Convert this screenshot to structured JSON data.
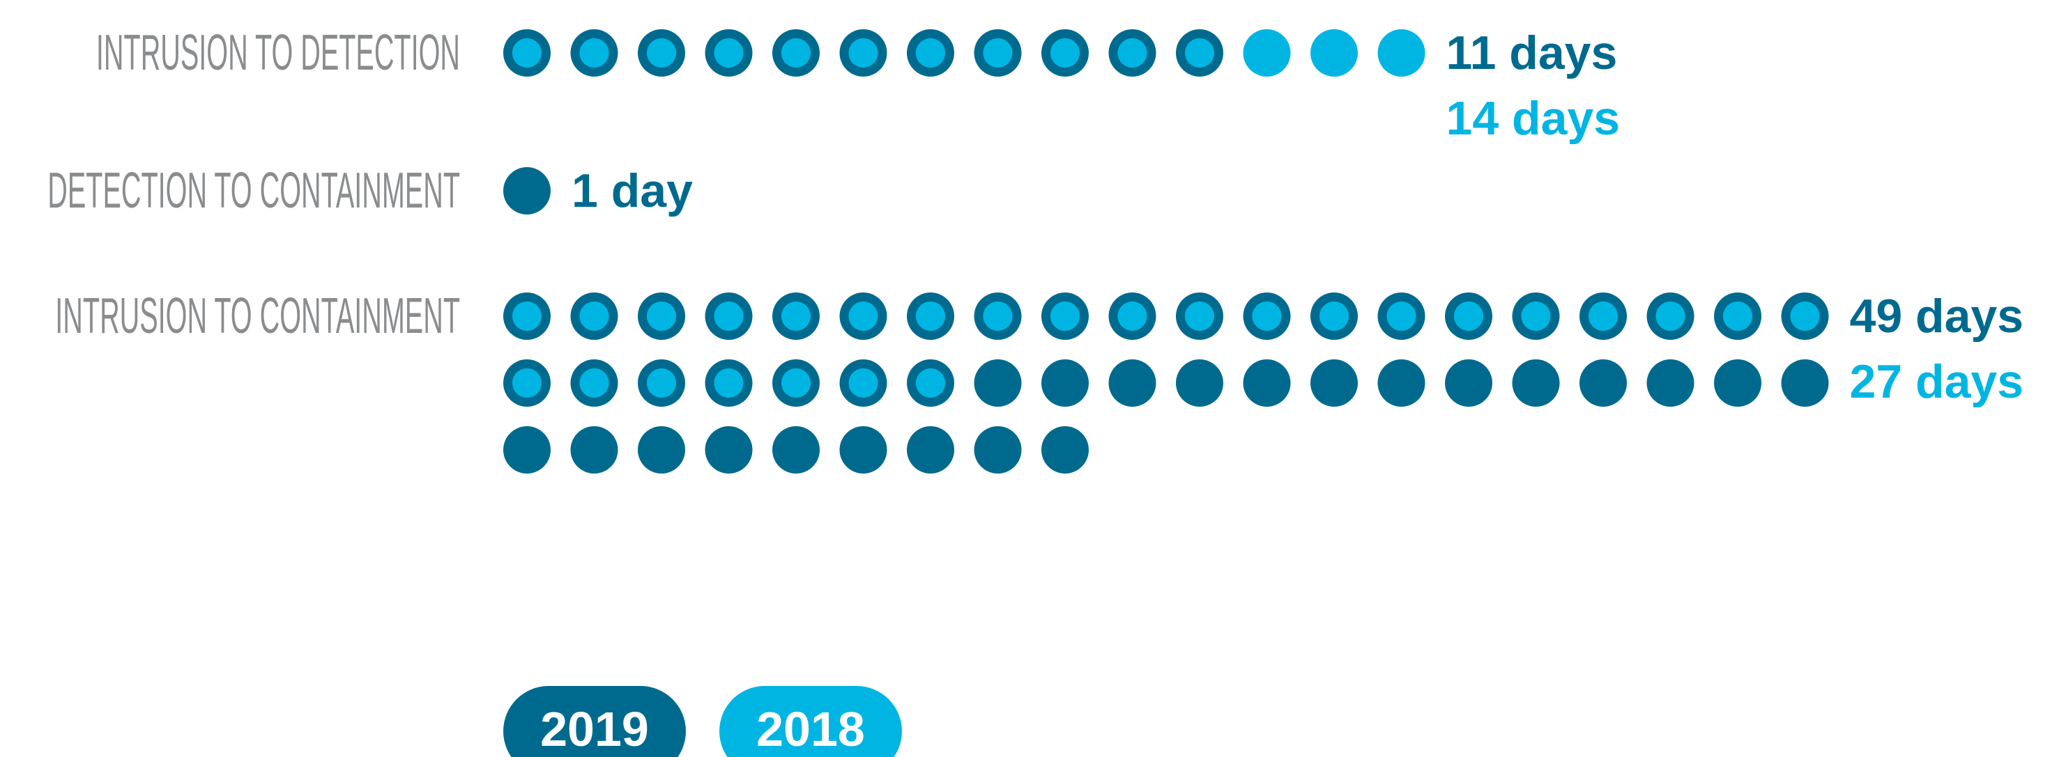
{
  "chart_data": {
    "type": "dot",
    "categories": [
      "INTRUSION TO DETECTION",
      "DETECTION TO CONTAINMENT",
      "INTRUSION TO CONTAINMENT"
    ],
    "series": [
      {
        "name": "2019",
        "color": "#006a8e",
        "values": [
          11,
          1,
          49
        ],
        "value_labels": [
          "11 days",
          "1 day",
          "49 days"
        ]
      },
      {
        "name": "2018",
        "color": "#00b5e2",
        "values": [
          14,
          null,
          27
        ],
        "value_labels": [
          "14 days",
          null,
          "27 days"
        ]
      }
    ]
  }
}
